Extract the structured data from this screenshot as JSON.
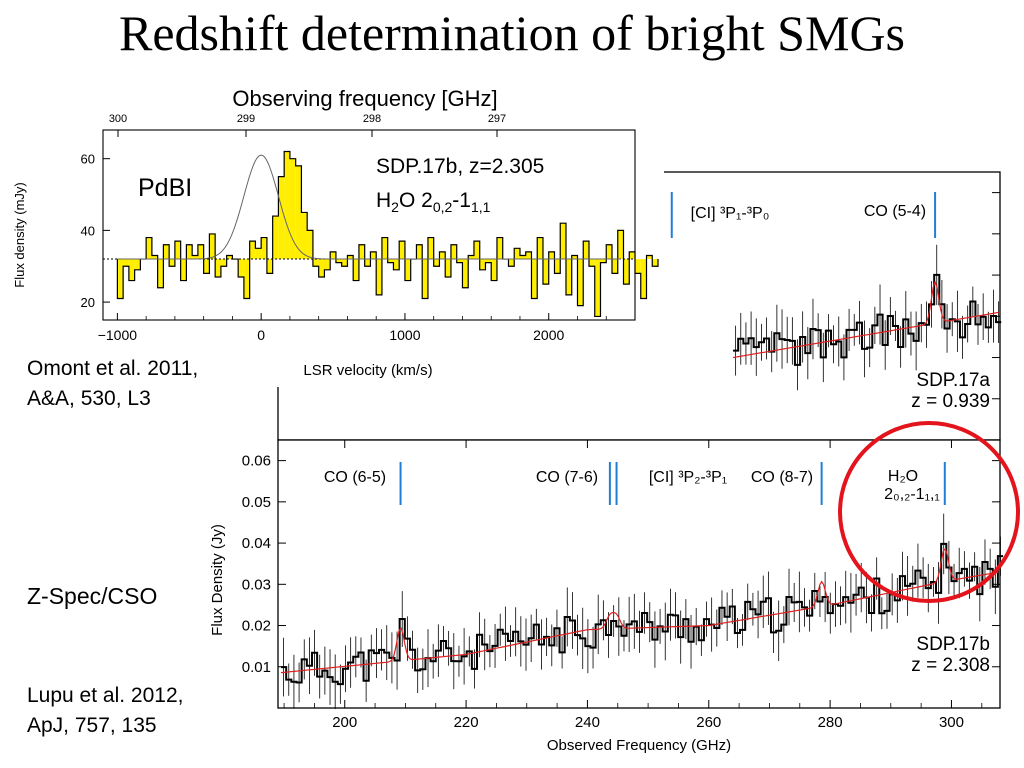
{
  "slide": {
    "title": "Redshift determination of bright SMGs",
    "citation_pdbi_line1": "Omont et al. 2011,",
    "citation_pdbi_line2": "A&A, 530, L3",
    "citation_zspec_line1": "Lupu et al. 2012,",
    "citation_zspec_line2": "ApJ, 757, 135",
    "instrument_zspec": "Z-Spec/CSO"
  },
  "colors": {
    "highlight_circle": "#e3141b",
    "line_marker": "#1f7fd6",
    "model": "#e02020",
    "pdbi_fill": "#ffee00"
  },
  "chart_data": [
    {
      "id": "pdbi",
      "type": "bar",
      "instrument": "PdBI",
      "annotation_line1": "SDP.17b, z=2.305",
      "annotation_line2": "H₂O 2₀,₂-1₁,₁",
      "xlabel": "LSR velocity (km/s)",
      "ylabel": "Flux density (mJy)",
      "top_axis_label": "Observing frequency [GHz]",
      "xlim": [
        -1100,
        2600
      ],
      "ylim": [
        15,
        68
      ],
      "xticks": [
        -1000,
        0,
        1000,
        2000
      ],
      "yticks": [
        20,
        40,
        60
      ],
      "top_ticks": [
        "300",
        "299",
        "298",
        "297"
      ],
      "continuum_level": 32,
      "gaussian": {
        "center": 0,
        "sigma": 120,
        "peak_above_continuum": 29
      },
      "channel_width": 40,
      "x_start": -1000,
      "values": [
        21,
        30,
        26,
        29,
        32,
        38,
        33,
        24,
        36,
        30,
        37,
        26,
        36,
        33,
        36,
        28,
        39,
        27,
        30,
        33,
        32,
        27,
        21,
        37,
        35,
        38,
        28,
        44,
        55,
        62,
        60,
        58,
        45,
        40,
        30,
        27,
        29,
        34,
        31,
        30,
        33,
        26,
        36,
        30,
        34,
        22,
        38,
        31,
        29,
        37,
        26,
        32,
        36,
        21,
        38,
        30,
        34,
        27,
        36,
        31,
        24,
        33,
        37,
        29,
        31,
        26,
        38,
        32,
        30,
        35,
        33,
        34,
        21,
        38,
        25,
        34,
        28,
        42,
        22,
        33,
        19,
        37,
        30,
        16,
        31,
        36,
        28,
        40,
        25,
        34,
        28,
        21,
        33,
        30
      ],
      "grid": false
    },
    {
      "id": "zspec",
      "type": "line",
      "xlabel": "Observed Frequency (GHz)",
      "ylabel": "Flux Density (Jy)",
      "xlim": [
        189,
        308
      ],
      "ylim": [
        0,
        0.065
      ],
      "xticks": [
        200,
        220,
        240,
        260,
        280,
        300
      ],
      "yticks": [
        0.01,
        0.02,
        0.03,
        0.04,
        0.05,
        0.06
      ],
      "ytick_labels": [
        "0.01",
        "0.02",
        "0.03",
        "0.04",
        "0.05",
        "0.06"
      ],
      "legend": "none",
      "grid": false,
      "panel_b": {
        "label_line1": "SDP.17b",
        "label_line2": "z = 2.308",
        "lines": [
          {
            "label": "CO (6-5)",
            "x": 209.2
          },
          {
            "label": "CO (7-6)",
            "x": 243.7
          },
          {
            "label": "[CI] ³P₂-³P₁",
            "x": 244.8
          },
          {
            "label": "CO (8-7)",
            "x": 278.6
          },
          {
            "label": "H₂O",
            "label2": "2₀,₂-1₁,₁",
            "x": 298.9
          }
        ],
        "continuum": [
          [
            189,
            0.0085
          ],
          [
            220,
            0.013
          ],
          [
            240,
            0.019
          ],
          [
            260,
            0.02
          ],
          [
            280,
            0.025
          ],
          [
            300,
            0.031
          ],
          [
            308,
            0.033
          ]
        ],
        "emission": [
          [
            209.2,
            0.008
          ],
          [
            243.7,
            0.003
          ],
          [
            244.8,
            0.003
          ],
          [
            278.6,
            0.006
          ],
          [
            298.9,
            0.008
          ]
        ]
      },
      "panel_a": {
        "label_line1": "SDP.17a",
        "label_line2": "z = 0.939",
        "lines": [
          {
            "label": "[CI] ³P₁-³P₀",
            "x": 253.9
          },
          {
            "label": "CO (5-4)",
            "x": 297.3
          }
        ],
        "continuum": [
          [
            264,
            0.02
          ],
          [
            280,
            0.024
          ],
          [
            300,
            0.029
          ],
          [
            308,
            0.031
          ]
        ],
        "emission": [
          [
            297.3,
            0.01
          ]
        ]
      }
    }
  ]
}
